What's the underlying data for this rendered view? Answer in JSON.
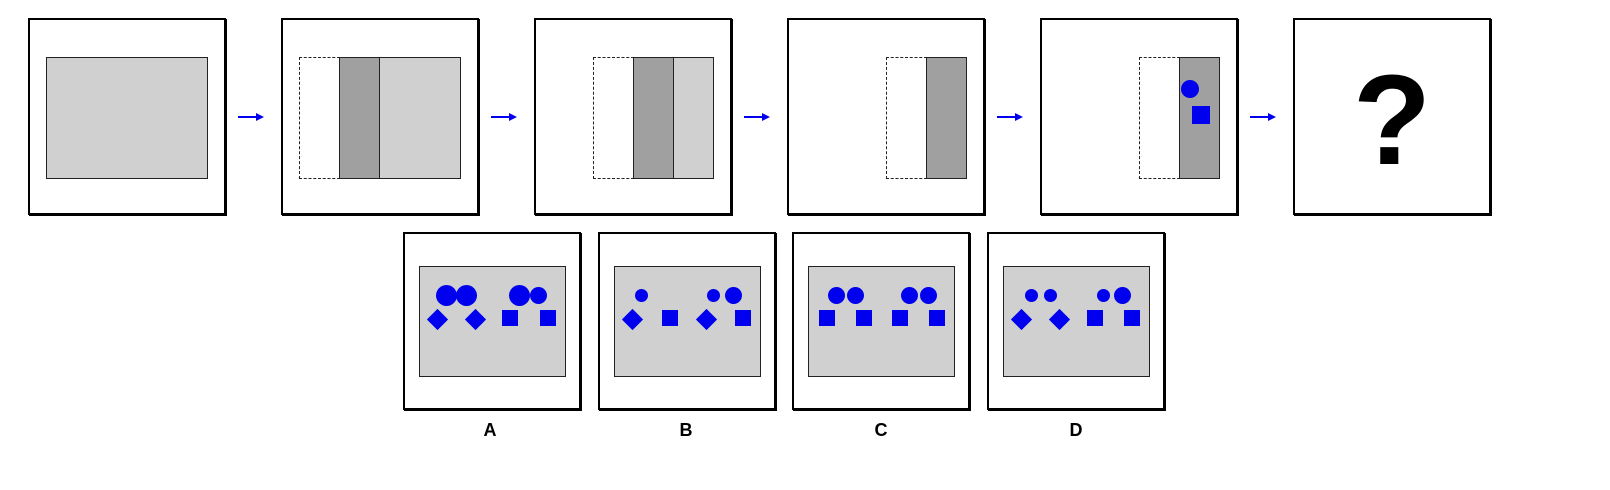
{
  "colors": {
    "shape": "#0000ee",
    "light_gray": "#d0d0d0",
    "dark_gray": "#a0a0a0",
    "arrow": "#0000ee"
  },
  "sequence": {
    "arrow_icon": "arrow-right-icon",
    "question_mark": "?"
  },
  "options": [
    {
      "label": "A"
    },
    {
      "label": "B"
    },
    {
      "label": "C"
    },
    {
      "label": "D"
    }
  ]
}
